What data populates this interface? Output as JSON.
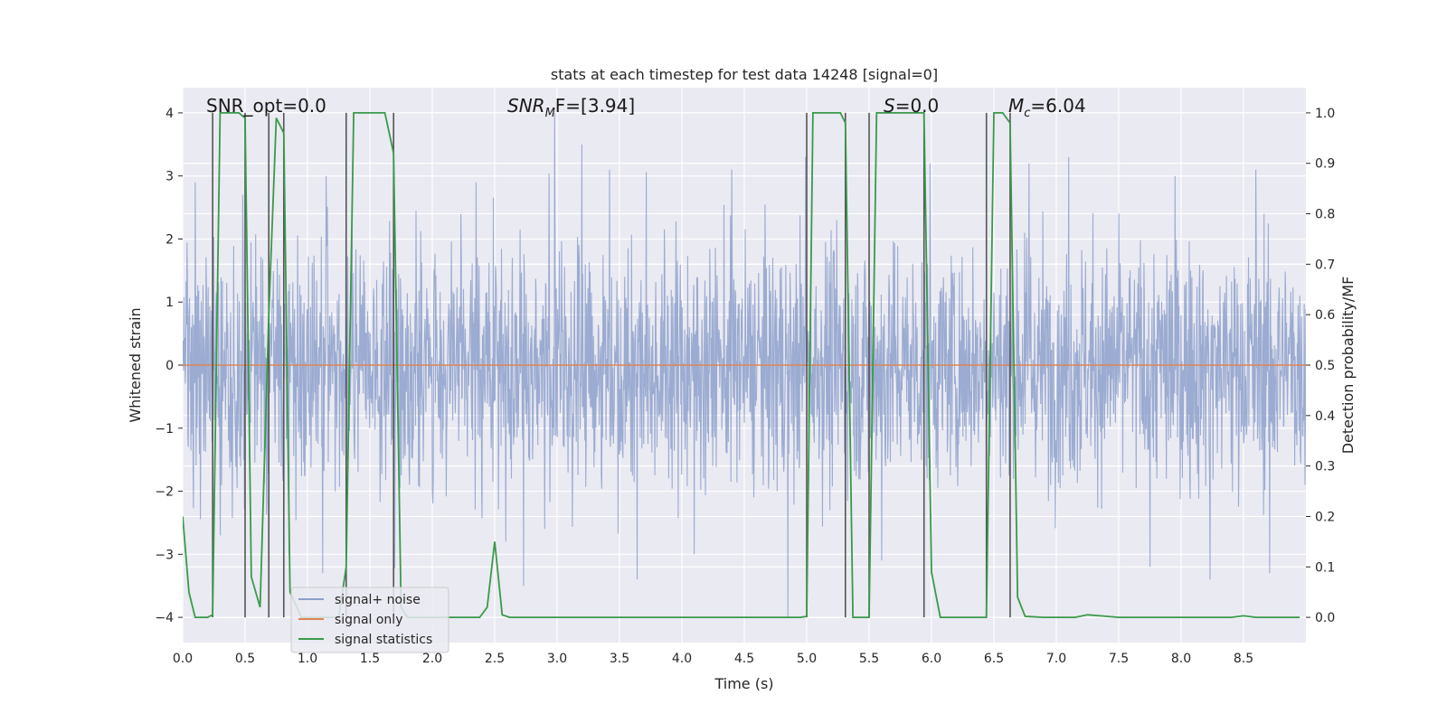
{
  "chart_data": {
    "type": "line",
    "title": "stats at each timestep for test data 14248 [signal=0]",
    "xlabel": "Time (s)",
    "ylabel": "Whitened strain",
    "ylabel_right": "Detection probability/MF",
    "xlim": [
      0.0,
      9.0
    ],
    "ylim": [
      -4.4,
      4.4
    ],
    "ylim_right": [
      -0.05,
      1.05
    ],
    "x_ticks": [
      0.0,
      0.5,
      1.0,
      1.5,
      2.0,
      2.5,
      3.0,
      3.5,
      4.0,
      4.5,
      5.0,
      5.5,
      6.0,
      6.5,
      7.0,
      7.5,
      8.0,
      8.5
    ],
    "x_tick_labels": [
      "0.0",
      "0.5",
      "1.0",
      "1.5",
      "2.0",
      "2.5",
      "3.0",
      "3.5",
      "4.0",
      "4.5",
      "5.0",
      "5.5",
      "6.0",
      "6.5",
      "7.0",
      "7.5",
      "8.0",
      "8.5"
    ],
    "y_ticks": [
      -4,
      -3,
      -2,
      -1,
      0,
      1,
      2,
      3,
      4
    ],
    "y_tick_labels": [
      "−4",
      "−3",
      "−2",
      "−1",
      "0",
      "1",
      "2",
      "3",
      "4"
    ],
    "y_ticks_right": [
      0.0,
      0.1,
      0.2,
      0.3,
      0.4,
      0.5,
      0.6,
      0.7,
      0.8,
      0.9,
      1.0
    ],
    "y_tick_labels_right": [
      "0.0",
      "0.1",
      "0.2",
      "0.3",
      "0.4",
      "0.5",
      "0.6",
      "0.7",
      "0.8",
      "0.9",
      "1.0"
    ],
    "annotations": {
      "snr_opt": "SNR_opt=0.0",
      "snr_mf_main": "SNR",
      "snr_mf_sub": "M",
      "snr_mf_rest": "F=[3.94]",
      "s_main": "S",
      "s_rest": "=0.0",
      "mc_main": "M",
      "mc_sub": "c",
      "mc_rest": "=6.04"
    },
    "noise_envelope": {
      "description": "dense whitened strain, roughly within -2 to +2.5 with occasional excursions",
      "typical_low": -2.0,
      "typical_high": 2.4,
      "peaks_high": [
        {
          "t": 0.1,
          "v": 2.9
        },
        {
          "t": 0.48,
          "v": 2.7
        },
        {
          "t": 1.15,
          "v": 3.0
        },
        {
          "t": 2.35,
          "v": 2.9
        },
        {
          "t": 2.98,
          "v": 4.0
        },
        {
          "t": 3.2,
          "v": 3.5
        },
        {
          "t": 3.42,
          "v": 3.1
        },
        {
          "t": 4.4,
          "v": 3.1
        },
        {
          "t": 4.99,
          "v": 3.3
        },
        {
          "t": 5.99,
          "v": 3.2
        },
        {
          "t": 6.78,
          "v": 3.2
        },
        {
          "t": 7.1,
          "v": 3.3
        },
        {
          "t": 7.95,
          "v": 3.0
        },
        {
          "t": 8.6,
          "v": 3.1
        }
      ],
      "peaks_low": [
        {
          "t": 0.3,
          "v": -2.7
        },
        {
          "t": 0.85,
          "v": -3.0
        },
        {
          "t": 1.12,
          "v": -3.3
        },
        {
          "t": 2.73,
          "v": -3.5
        },
        {
          "t": 3.64,
          "v": -3.4
        },
        {
          "t": 4.1,
          "v": -3.0
        },
        {
          "t": 4.85,
          "v": -4.0
        },
        {
          "t": 5.6,
          "v": -3.1
        },
        {
          "t": 7.75,
          "v": -3.2
        },
        {
          "t": 8.23,
          "v": -3.4
        },
        {
          "t": 8.71,
          "v": -3.3
        }
      ]
    },
    "vertical_markers": [
      {
        "t": 0.24,
        "v_low": -4.0,
        "v_high": 4.0
      },
      {
        "t": 0.5,
        "v_low": -4.0,
        "v_high": 4.0
      },
      {
        "t": 0.69,
        "v_low": -4.0,
        "v_high": 4.0
      },
      {
        "t": 0.81,
        "v_low": -4.0,
        "v_high": 4.0
      },
      {
        "t": 1.31,
        "v_low": -4.0,
        "v_high": 4.0
      },
      {
        "t": 1.69,
        "v_low": -4.0,
        "v_high": 4.0
      },
      {
        "t": 5.0,
        "v_low": -4.0,
        "v_high": 4.0
      },
      {
        "t": 5.31,
        "v_low": -4.0,
        "v_high": 4.0
      },
      {
        "t": 5.5,
        "v_low": -4.0,
        "v_high": 4.0
      },
      {
        "t": 5.94,
        "v_low": -4.0,
        "v_high": 4.0
      },
      {
        "t": 6.44,
        "v_low": -4.0,
        "v_high": 4.0
      },
      {
        "t": 6.63,
        "v_low": -4.0,
        "v_high": 4.0
      }
    ],
    "series": [
      {
        "name": "signal+ noise",
        "color": "#8da0cb",
        "axis": "left",
        "style": "dense-noise"
      },
      {
        "name": "signal only",
        "color": "#dd8452",
        "axis": "left",
        "x": [
          0.0,
          9.0
        ],
        "y": [
          0.0,
          0.0
        ]
      },
      {
        "name": "signal statistics",
        "color": "#3a9a4a",
        "axis": "right",
        "x": [
          0.0,
          0.05,
          0.1,
          0.15,
          0.2,
          0.24,
          0.3,
          0.35,
          0.4,
          0.45,
          0.5,
          0.55,
          0.62,
          0.69,
          0.75,
          0.81,
          0.86,
          0.95,
          1.0,
          1.05,
          1.1,
          1.15,
          1.2,
          1.25,
          1.31,
          1.37,
          1.45,
          1.5,
          1.55,
          1.62,
          1.69,
          1.75,
          1.8,
          2.0,
          2.2,
          2.38,
          2.44,
          2.5,
          2.56,
          2.62,
          3.0,
          3.5,
          4.0,
          4.5,
          4.95,
          5.0,
          5.05,
          5.1,
          5.2,
          5.27,
          5.31,
          5.37,
          5.45,
          5.5,
          5.56,
          5.7,
          5.9,
          5.94,
          6.0,
          6.07,
          6.2,
          6.38,
          6.44,
          6.5,
          6.57,
          6.63,
          6.69,
          6.75,
          6.9,
          7.0,
          7.15,
          7.25,
          7.35,
          7.5,
          8.0,
          8.4,
          8.5,
          8.6,
          8.95
        ],
        "y": [
          0.2,
          0.05,
          0.0,
          0.0,
          0.0,
          0.005,
          1.0,
          1.0,
          1.0,
          1.0,
          0.99,
          0.08,
          0.02,
          0.6,
          0.99,
          0.96,
          0.05,
          0.0,
          0.0,
          0.0,
          0.0,
          0.0,
          0.0,
          0.0,
          0.1,
          1.0,
          1.0,
          1.0,
          1.0,
          1.0,
          0.92,
          0.02,
          0.0,
          0.0,
          0.0,
          0.0,
          0.02,
          0.15,
          0.005,
          0.0,
          0.0,
          0.0,
          0.0,
          0.0,
          0.0,
          0.002,
          1.0,
          1.0,
          1.0,
          1.0,
          0.98,
          0.0,
          0.0,
          0.0,
          1.0,
          1.0,
          1.0,
          1.0,
          0.09,
          0.0,
          0.0,
          0.0,
          0.0,
          1.0,
          1.0,
          0.98,
          0.04,
          0.002,
          0.0,
          0.0,
          0.0,
          0.005,
          0.003,
          0.0,
          0.0,
          0.0,
          0.003,
          0.0,
          0.0
        ]
      }
    ],
    "legend": {
      "position": "lower-left",
      "entries": [
        {
          "label": "signal+ noise",
          "color": "#8da0cb"
        },
        {
          "label": "signal only",
          "color": "#dd8452"
        },
        {
          "label": "signal statistics",
          "color": "#3a9a4a"
        }
      ]
    }
  },
  "colors": {
    "plot_background": "#eaeaf2",
    "grid": "#ffffff",
    "noise": "#8da0cb",
    "marker": "#555555",
    "signal_only": "#dd8452",
    "statistics": "#3a9a4a"
  }
}
